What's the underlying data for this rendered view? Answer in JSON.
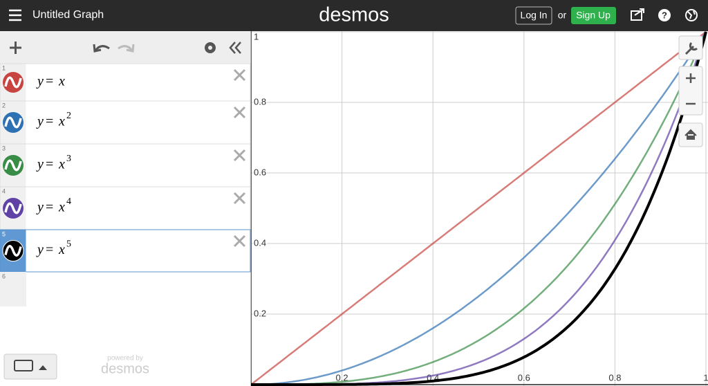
{
  "header": {
    "title": "Untitled Graph",
    "logo": "desmos",
    "login": "Log In",
    "or": "or",
    "signup": "Sign Up"
  },
  "expressions": [
    {
      "number": 1,
      "lhs": "y",
      "op": "=",
      "var": "x",
      "color": "#c74440"
    },
    {
      "number": 2,
      "lhs": "y",
      "op": "=",
      "var": "x",
      "exponent": 2,
      "color": "#2d70b3"
    },
    {
      "number": 3,
      "lhs": "y",
      "op": "=",
      "var": "x",
      "exponent": 3,
      "color": "#388c46"
    },
    {
      "number": 4,
      "lhs": "y",
      "op": "=",
      "var": "x",
      "exponent": 4,
      "color": "#6042a6"
    },
    {
      "number": 5,
      "lhs": "y",
      "op": "=",
      "var": "x",
      "exponent": 5,
      "color": "#000000",
      "selected": true
    }
  ],
  "next_number": 6,
  "footer": {
    "powered": "powered by",
    "brand": "desmos"
  },
  "graph": {
    "xlim": [
      0,
      1
    ],
    "ylim": [
      0,
      1
    ],
    "xticks": [
      0.2,
      0.4,
      0.6,
      0.8,
      1
    ],
    "yticks": [
      0.2,
      0.4,
      0.6,
      0.8,
      1
    ],
    "grid": true
  }
}
